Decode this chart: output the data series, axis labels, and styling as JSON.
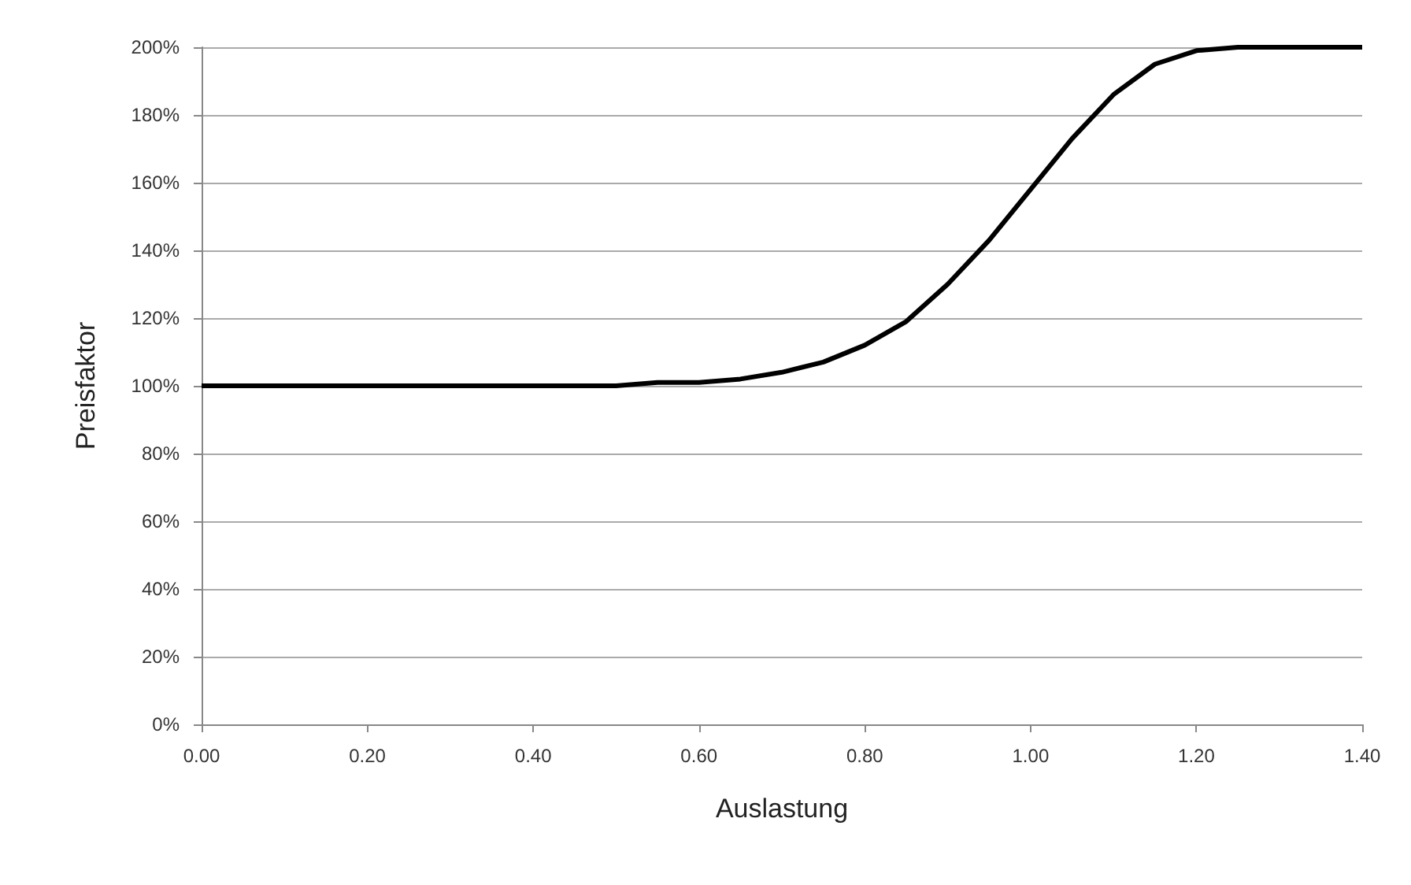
{
  "chart_data": {
    "type": "line",
    "xlabel": "Auslastung",
    "ylabel": "Preisfaktor",
    "x": [
      0,
      0.1,
      0.2,
      0.3,
      0.4,
      0.5,
      0.55,
      0.6,
      0.65,
      0.7,
      0.75,
      0.8,
      0.85,
      0.9,
      0.95,
      1.0,
      1.05,
      1.1,
      1.15,
      1.2,
      1.25,
      1.3,
      1.4
    ],
    "series": [
      {
        "color": "#000000",
        "values": [
          100,
          100,
          100,
          100,
          100,
          100,
          101,
          101,
          102,
          104,
          107,
          112,
          119,
          130,
          143,
          158,
          173,
          186,
          195,
          199,
          200,
          200,
          200
        ]
      }
    ],
    "xlim": [
      0,
      1.4
    ],
    "xticks": [
      {
        "value": 0,
        "label": "0.00"
      },
      {
        "value": 0.2,
        "label": "0.20"
      },
      {
        "value": 0.4,
        "label": "0.40"
      },
      {
        "value": 0.6,
        "label": "0.60"
      },
      {
        "value": 0.8,
        "label": "0.80"
      },
      {
        "value": 1.0,
        "label": "1.00"
      },
      {
        "value": 1.2,
        "label": "1.20"
      },
      {
        "value": 1.4,
        "label": "1.40"
      }
    ],
    "ylim": [
      0,
      200
    ],
    "yticks": [
      {
        "value": 0,
        "label": "0%"
      },
      {
        "value": 20,
        "label": "20%"
      },
      {
        "value": 40,
        "label": "40%"
      },
      {
        "value": 60,
        "label": "60%"
      },
      {
        "value": 80,
        "label": "80%"
      },
      {
        "value": 100,
        "label": "100%"
      },
      {
        "value": 120,
        "label": "120%"
      },
      {
        "value": 140,
        "label": "140%"
      },
      {
        "value": 160,
        "label": "160%"
      },
      {
        "value": 180,
        "label": "180%"
      },
      {
        "value": 200,
        "label": "200%"
      }
    ],
    "grid": "y",
    "marker": "none",
    "line_style": "solid"
  }
}
